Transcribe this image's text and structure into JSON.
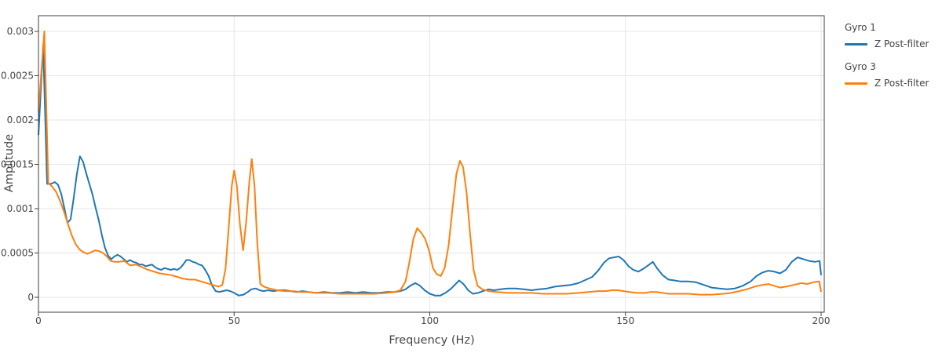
{
  "colors": {
    "series_blue": "#1f77b4",
    "series_orange": "#ff7f0e",
    "grid": "#e6e6e6",
    "axis": "#3f3f3f",
    "text": "#444444",
    "background": "#ffffff"
  },
  "axes": {
    "x_title": "Frequency (Hz)",
    "y_title": "Amplitude"
  },
  "legend": {
    "groups": [
      {
        "title": "Gyro 1",
        "items": [
          {
            "label": "Z Post-filter",
            "series": 0
          }
        ]
      },
      {
        "title": "Gyro 3",
        "items": [
          {
            "label": "Z Post-filter",
            "series": 1
          }
        ]
      }
    ]
  },
  "chart_data": {
    "type": "line",
    "title": "",
    "xlabel": "Frequency (Hz)",
    "ylabel": "Amplitude",
    "xlim": [
      0,
      200
    ],
    "ylim": [
      -0.00017,
      0.00317
    ],
    "grid": true,
    "legend_position": "right-outside",
    "x_ticks": {
      "values": [
        0,
        50,
        100,
        150,
        200
      ],
      "labels": [
        "0",
        "50",
        "100",
        "150",
        "200"
      ]
    },
    "y_ticks": {
      "values": [
        0,
        0.0005,
        0.001,
        0.0015,
        0.002,
        0.0025,
        0.003
      ],
      "labels": [
        "0",
        "0.0005",
        "0.001",
        "0.0015",
        "0.002",
        "0.0025",
        "0.003"
      ]
    },
    "series": [
      {
        "group": "Gyro 1",
        "name": "Z Post-filter",
        "color": "#1f77b4",
        "points": [
          [
            0,
            0.00183
          ],
          [
            1.2,
            0.00285
          ],
          [
            2.2,
            0.00128
          ],
          [
            3.2,
            0.00128
          ],
          [
            4.2,
            0.0013
          ],
          [
            5,
            0.00127
          ],
          [
            5.8,
            0.00117
          ],
          [
            6.6,
            0.00101
          ],
          [
            7.4,
            0.00084
          ],
          [
            8.2,
            0.00088
          ],
          [
            9,
            0.00112
          ],
          [
            9.8,
            0.00139
          ],
          [
            10.6,
            0.00159
          ],
          [
            11.4,
            0.00153
          ],
          [
            12.2,
            0.0014
          ],
          [
            13,
            0.00128
          ],
          [
            13.8,
            0.00116
          ],
          [
            14.6,
            0.00101
          ],
          [
            15.4,
            0.00087
          ],
          [
            16.2,
            0.0007
          ],
          [
            17,
            0.00056
          ],
          [
            17.8,
            0.00047
          ],
          [
            18.6,
            0.00043
          ],
          [
            19.4,
            0.00046
          ],
          [
            20.2,
            0.00048
          ],
          [
            21,
            0.00046
          ],
          [
            21.8,
            0.00043
          ],
          [
            22.6,
            0.0004
          ],
          [
            23.4,
            0.00042
          ],
          [
            24.2,
            0.0004
          ],
          [
            25,
            0.00039
          ],
          [
            25.8,
            0.00037
          ],
          [
            26.6,
            0.00037
          ],
          [
            27.4,
            0.00035
          ],
          [
            28.2,
            0.00036
          ],
          [
            29,
            0.00037
          ],
          [
            29.8,
            0.00034
          ],
          [
            30.6,
            0.00032
          ],
          [
            31.4,
            0.00031
          ],
          [
            32.2,
            0.00033
          ],
          [
            33,
            0.00032
          ],
          [
            33.8,
            0.00031
          ],
          [
            34.6,
            0.00032
          ],
          [
            35.4,
            0.00031
          ],
          [
            36.2,
            0.00033
          ],
          [
            37,
            0.00037
          ],
          [
            37.8,
            0.00042
          ],
          [
            38.6,
            0.00042
          ],
          [
            39.4,
            0.0004
          ],
          [
            40.2,
            0.00039
          ],
          [
            41,
            0.00037
          ],
          [
            41.8,
            0.00036
          ],
          [
            42.6,
            0.00031
          ],
          [
            43.5,
            0.00024
          ],
          [
            44.4,
            0.00013
          ],
          [
            45.3,
            7e-05
          ],
          [
            46.2,
            6e-05
          ],
          [
            47.1,
            7e-05
          ],
          [
            48.1,
            8e-05
          ],
          [
            49,
            7e-05
          ],
          [
            50,
            5e-05
          ],
          [
            51.2,
            2e-05
          ],
          [
            52.4,
            3e-05
          ],
          [
            53.5,
            6e-05
          ],
          [
            54.4,
            9e-05
          ],
          [
            55.5,
            0.0001
          ],
          [
            56.5,
            8e-05
          ],
          [
            57.5,
            7e-05
          ],
          [
            58.7,
            8e-05
          ],
          [
            60,
            7e-05
          ],
          [
            61.5,
            8e-05
          ],
          [
            63,
            8e-05
          ],
          [
            64.5,
            7e-05
          ],
          [
            66,
            6e-05
          ],
          [
            67.5,
            7e-05
          ],
          [
            69,
            6e-05
          ],
          [
            71,
            5e-05
          ],
          [
            73,
            6e-05
          ],
          [
            75,
            5e-05
          ],
          [
            77,
            5e-05
          ],
          [
            79,
            6e-05
          ],
          [
            81,
            5e-05
          ],
          [
            83,
            6e-05
          ],
          [
            85,
            5e-05
          ],
          [
            87,
            5e-05
          ],
          [
            89,
            6e-05
          ],
          [
            91,
            6e-05
          ],
          [
            92.5,
            7e-05
          ],
          [
            93.8,
            9e-05
          ],
          [
            95,
            0.00013
          ],
          [
            96.3,
            0.00016
          ],
          [
            97.5,
            0.00013
          ],
          [
            98.7,
            8e-05
          ],
          [
            100,
            4e-05
          ],
          [
            101.3,
            2e-05
          ],
          [
            102.7,
            2e-05
          ],
          [
            104,
            5e-05
          ],
          [
            105.5,
            0.0001
          ],
          [
            106.6,
            0.00015
          ],
          [
            107.5,
            0.00019
          ],
          [
            108.6,
            0.00015
          ],
          [
            109.8,
            8e-05
          ],
          [
            111,
            4e-05
          ],
          [
            112.3,
            5e-05
          ],
          [
            113.6,
            7e-05
          ],
          [
            115,
            9e-05
          ],
          [
            116.4,
            8e-05
          ],
          [
            118,
            9e-05
          ],
          [
            120,
            0.0001
          ],
          [
            122,
            0.0001
          ],
          [
            124,
            9e-05
          ],
          [
            126,
            8e-05
          ],
          [
            128,
            9e-05
          ],
          [
            130,
            0.0001
          ],
          [
            132,
            0.00012
          ],
          [
            134,
            0.00013
          ],
          [
            136,
            0.00014
          ],
          [
            138,
            0.00016
          ],
          [
            140,
            0.0002
          ],
          [
            141.5,
            0.00023
          ],
          [
            143,
            0.0003
          ],
          [
            144.5,
            0.00039
          ],
          [
            145.8,
            0.00044
          ],
          [
            147,
            0.00045
          ],
          [
            148.3,
            0.00046
          ],
          [
            149.5,
            0.00042
          ],
          [
            150.8,
            0.00035
          ],
          [
            152,
            0.00031
          ],
          [
            153.3,
            0.00029
          ],
          [
            154.5,
            0.00032
          ],
          [
            155.8,
            0.00036
          ],
          [
            157,
            0.0004
          ],
          [
            158.2,
            0.00032
          ],
          [
            159.5,
            0.00025
          ],
          [
            161,
            0.0002
          ],
          [
            162.5,
            0.00019
          ],
          [
            164,
            0.00018
          ],
          [
            166,
            0.00018
          ],
          [
            168,
            0.00017
          ],
          [
            170,
            0.00014
          ],
          [
            172,
            0.00011
          ],
          [
            174,
            0.0001
          ],
          [
            176,
            9e-05
          ],
          [
            178,
            0.0001
          ],
          [
            180,
            0.00013
          ],
          [
            182,
            0.00018
          ],
          [
            183.5,
            0.00024
          ],
          [
            185,
            0.00028
          ],
          [
            186.5,
            0.0003
          ],
          [
            188,
            0.00029
          ],
          [
            189.5,
            0.00027
          ],
          [
            191,
            0.00031
          ],
          [
            192.5,
            0.0004
          ],
          [
            194,
            0.00045
          ],
          [
            195.5,
            0.00043
          ],
          [
            197,
            0.00041
          ],
          [
            198.4,
            0.0004
          ],
          [
            199.6,
            0.00041
          ],
          [
            200,
            0.00025
          ]
        ]
      },
      {
        "group": "Gyro 3",
        "name": "Z Post-filter",
        "color": "#ff7f0e",
        "points": [
          [
            0,
            0.0021
          ],
          [
            1.5,
            0.003
          ],
          [
            2.5,
            0.00129
          ],
          [
            3.5,
            0.00125
          ],
          [
            4.5,
            0.00119
          ],
          [
            5.5,
            0.00109
          ],
          [
            6.5,
            0.00097
          ],
          [
            7.5,
            0.00083
          ],
          [
            8.5,
            0.0007
          ],
          [
            9.5,
            0.0006
          ],
          [
            10.5,
            0.00054
          ],
          [
            11.5,
            0.00051
          ],
          [
            12.5,
            0.00049
          ],
          [
            13.5,
            0.00051
          ],
          [
            14.5,
            0.00053
          ],
          [
            15.5,
            0.00052
          ],
          [
            16.5,
            0.0005
          ],
          [
            17.5,
            0.00046
          ],
          [
            18.5,
            0.00041
          ],
          [
            19.5,
            0.0004
          ],
          [
            20.5,
            0.0004
          ],
          [
            22,
            0.00041
          ],
          [
            23.4,
            0.00036
          ],
          [
            25,
            0.00037
          ],
          [
            26.5,
            0.00034
          ],
          [
            28,
            0.00031
          ],
          [
            29.5,
            0.00029
          ],
          [
            31,
            0.00027
          ],
          [
            32.5,
            0.00026
          ],
          [
            34,
            0.00025
          ],
          [
            35.5,
            0.00023
          ],
          [
            37,
            0.00021
          ],
          [
            38.5,
            0.0002
          ],
          [
            40,
            0.0002
          ],
          [
            41.5,
            0.00018
          ],
          [
            43,
            0.00016
          ],
          [
            44.5,
            0.00014
          ],
          [
            46,
            0.00012
          ],
          [
            47,
            0.00014
          ],
          [
            47.8,
            0.00032
          ],
          [
            48.6,
            0.00078
          ],
          [
            49.4,
            0.00126
          ],
          [
            50,
            0.00143
          ],
          [
            50.7,
            0.00126
          ],
          [
            51.5,
            0.00082
          ],
          [
            52.3,
            0.00053
          ],
          [
            53.1,
            0.00086
          ],
          [
            53.9,
            0.00131
          ],
          [
            54.5,
            0.00156
          ],
          [
            55.2,
            0.00126
          ],
          [
            55.9,
            0.00062
          ],
          [
            56.7,
            0.00015
          ],
          [
            57.6,
            0.00012
          ],
          [
            59,
            0.0001
          ],
          [
            61,
            8e-05
          ],
          [
            63,
            7e-05
          ],
          [
            65,
            7e-05
          ],
          [
            67,
            6e-05
          ],
          [
            69,
            6e-05
          ],
          [
            71,
            5e-05
          ],
          [
            74,
            5e-05
          ],
          [
            77,
            4e-05
          ],
          [
            80,
            4e-05
          ],
          [
            83,
            4e-05
          ],
          [
            86,
            4e-05
          ],
          [
            89,
            5e-05
          ],
          [
            91,
            6e-05
          ],
          [
            92.5,
            8e-05
          ],
          [
            93.8,
            0.00018
          ],
          [
            94.8,
            0.0004
          ],
          [
            95.8,
            0.00066
          ],
          [
            96.8,
            0.00078
          ],
          [
            97.8,
            0.00073
          ],
          [
            98.8,
            0.00066
          ],
          [
            99.8,
            0.00053
          ],
          [
            100.8,
            0.00033
          ],
          [
            101.8,
            0.00026
          ],
          [
            102.8,
            0.00024
          ],
          [
            103.8,
            0.00033
          ],
          [
            104.8,
            0.00058
          ],
          [
            105.8,
            0.001
          ],
          [
            106.8,
            0.00139
          ],
          [
            107.7,
            0.00154
          ],
          [
            108.5,
            0.00147
          ],
          [
            109.4,
            0.00118
          ],
          [
            110.3,
            0.00072
          ],
          [
            111.2,
            0.00031
          ],
          [
            112.2,
            0.00013
          ],
          [
            113.4,
            9e-05
          ],
          [
            115,
            7e-05
          ],
          [
            117,
            6e-05
          ],
          [
            120,
            5e-05
          ],
          [
            123,
            5e-05
          ],
          [
            126,
            5e-05
          ],
          [
            129,
            4e-05
          ],
          [
            132,
            4e-05
          ],
          [
            135,
            4e-05
          ],
          [
            138,
            5e-05
          ],
          [
            140.5,
            6e-05
          ],
          [
            143,
            7e-05
          ],
          [
            145,
            7e-05
          ],
          [
            146.5,
            8e-05
          ],
          [
            148,
            8e-05
          ],
          [
            149.5,
            7e-05
          ],
          [
            151,
            6e-05
          ],
          [
            153,
            5e-05
          ],
          [
            155,
            5e-05
          ],
          [
            156.5,
            6e-05
          ],
          [
            158,
            6e-05
          ],
          [
            159.5,
            5e-05
          ],
          [
            161,
            4e-05
          ],
          [
            163,
            4e-05
          ],
          [
            166,
            4e-05
          ],
          [
            169,
            3e-05
          ],
          [
            172,
            3e-05
          ],
          [
            175,
            4e-05
          ],
          [
            177,
            5e-05
          ],
          [
            179,
            7e-05
          ],
          [
            181,
            9e-05
          ],
          [
            183,
            0.00012
          ],
          [
            185,
            0.00014
          ],
          [
            186.5,
            0.00015
          ],
          [
            188,
            0.00013
          ],
          [
            189.5,
            0.00011
          ],
          [
            191,
            0.00012
          ],
          [
            193,
            0.00014
          ],
          [
            195,
            0.00016
          ],
          [
            196.5,
            0.00015
          ],
          [
            198,
            0.00017
          ],
          [
            199.5,
            0.00018
          ],
          [
            200,
            6e-05
          ]
        ]
      }
    ]
  }
}
